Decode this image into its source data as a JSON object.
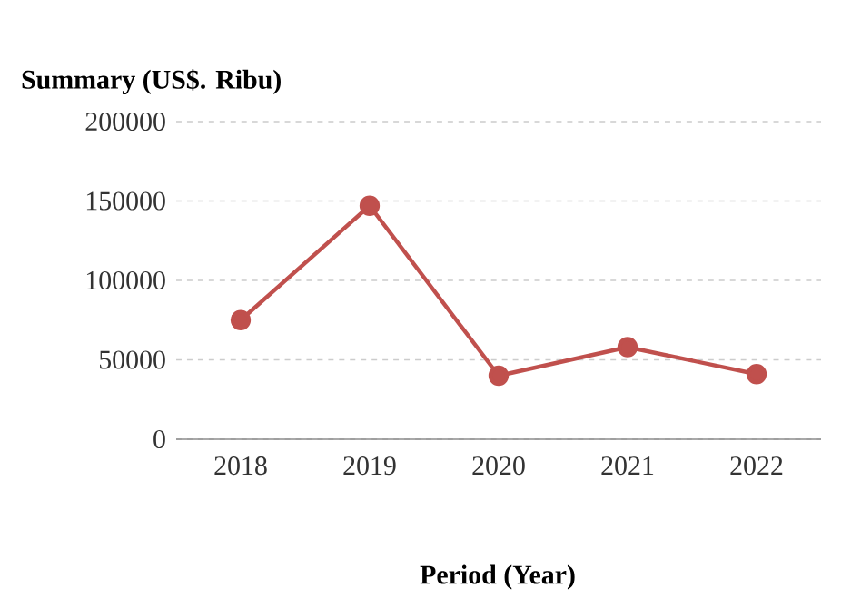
{
  "chart_data": {
    "type": "line",
    "title": "Summary (US$. Ribu)",
    "xlabel": "Period (Year)",
    "categories": [
      "2018",
      "2019",
      "2020",
      "2021",
      "2022"
    ],
    "series": [
      {
        "color": "#c0504d",
        "values": [
          75000,
          147000,
          40000,
          58000,
          41000
        ]
      }
    ],
    "ylim": [
      0,
      200000
    ],
    "yticks": [
      0,
      50000,
      100000,
      150000,
      200000
    ],
    "grid": "y",
    "marker": "circle",
    "line_style": "solid"
  }
}
